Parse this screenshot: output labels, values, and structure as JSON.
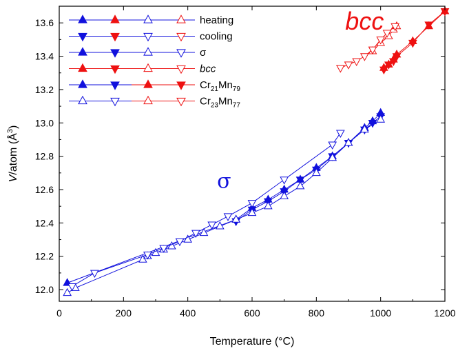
{
  "chart_data": {
    "type": "line",
    "xlabel": "Temperature (°C)",
    "ylabel_parts": [
      "V",
      "/atom (Å",
      "3",
      ")"
    ],
    "xlim": [
      0,
      1200
    ],
    "ylim": [
      11.93,
      13.7
    ],
    "xticks": [
      0,
      200,
      400,
      600,
      800,
      1000,
      1200
    ],
    "yticks": [
      12.0,
      12.2,
      12.4,
      12.6,
      12.8,
      13.0,
      13.2,
      13.4,
      13.6
    ],
    "colors": {
      "sigma": "#1111dd",
      "bcc": "#ee1111",
      "frame": "#000000"
    },
    "legend": [
      {
        "text": "heating",
        "line": "#1111dd",
        "markers": [
          {
            "shape": "tri-up",
            "filled": true,
            "color": "#1111dd"
          },
          {
            "shape": "tri-up",
            "filled": true,
            "color": "#ee1111"
          },
          {
            "shape": "tri-up",
            "filled": false,
            "color": "#1111dd"
          },
          {
            "shape": "tri-up",
            "filled": false,
            "color": "#ee1111"
          }
        ]
      },
      {
        "text": "cooling",
        "line": "#1111dd",
        "markers": [
          {
            "shape": "tri-down",
            "filled": true,
            "color": "#1111dd"
          },
          {
            "shape": "tri-down",
            "filled": true,
            "color": "#ee1111"
          },
          {
            "shape": "tri-down",
            "filled": false,
            "color": "#1111dd"
          },
          {
            "shape": "tri-down",
            "filled": false,
            "color": "#ee1111"
          }
        ]
      },
      {
        "text": "σ",
        "line": "#1111dd",
        "markers": [
          {
            "shape": "tri-up",
            "filled": true,
            "color": "#1111dd"
          },
          {
            "shape": "tri-down",
            "filled": true,
            "color": "#1111dd"
          },
          {
            "shape": "tri-up",
            "filled": false,
            "color": "#1111dd"
          },
          {
            "shape": "tri-down",
            "filled": false,
            "color": "#1111dd"
          }
        ]
      },
      {
        "text": "bcc",
        "italic": true,
        "line": "#ee1111",
        "markers": [
          {
            "shape": "tri-up",
            "filled": true,
            "color": "#ee1111"
          },
          {
            "shape": "tri-down",
            "filled": true,
            "color": "#ee1111"
          },
          {
            "shape": "tri-up",
            "filled": false,
            "color": "#ee1111"
          },
          {
            "shape": "tri-down",
            "filled": false,
            "color": "#ee1111"
          }
        ]
      },
      {
        "text": "Cr",
        "sub1": "21",
        "mid": "Mn",
        "sub2": "79",
        "line": "#1111dd",
        "line2": "#ee1111",
        "markers": [
          {
            "shape": "tri-up",
            "filled": true,
            "color": "#1111dd"
          },
          {
            "shape": "tri-down",
            "filled": true,
            "color": "#1111dd"
          },
          {
            "shape": "tri-up",
            "filled": true,
            "color": "#ee1111"
          },
          {
            "shape": "tri-down",
            "filled": true,
            "color": "#ee1111"
          }
        ]
      },
      {
        "text": "Cr",
        "sub1": "23",
        "mid": "Mn",
        "sub2": "77",
        "line": "#1111dd",
        "line2": "#ee1111",
        "markers": [
          {
            "shape": "tri-up",
            "filled": false,
            "color": "#1111dd"
          },
          {
            "shape": "tri-down",
            "filled": false,
            "color": "#1111dd"
          },
          {
            "shape": "tri-up",
            "filled": false,
            "color": "#ee1111"
          },
          {
            "shape": "tri-down",
            "filled": false,
            "color": "#ee1111"
          }
        ]
      }
    ],
    "annotations": [
      {
        "text": "bcc",
        "cls": "anno-bcc",
        "x": 1010,
        "y": 13.56
      },
      {
        "text": "σ",
        "cls": "anno-sigma",
        "x": 535,
        "y": 12.61
      }
    ],
    "series": [
      {
        "name": "heating",
        "phase": "sigma",
        "alloy": "Cr21Mn79",
        "marker": "tri-up",
        "filled": true,
        "color": "#1111dd",
        "x": [
          25,
          550,
          600,
          650,
          700,
          750,
          800,
          850,
          900,
          950,
          975,
          1000
        ],
        "y": [
          12.04,
          12.42,
          12.49,
          12.54,
          12.6,
          12.66,
          12.73,
          12.8,
          12.88,
          12.97,
          13.01,
          13.06
        ]
      },
      {
        "name": "cooling",
        "phase": "sigma",
        "alloy": "Cr21Mn79",
        "marker": "tri-down",
        "filled": true,
        "color": "#1111dd",
        "x": [
          1000,
          975,
          950,
          900,
          850,
          800,
          750,
          700,
          650,
          600,
          550
        ],
        "y": [
          13.04,
          13.0,
          12.96,
          12.88,
          12.8,
          12.72,
          12.66,
          12.59,
          12.53,
          12.48,
          12.41
        ]
      },
      {
        "name": "heating",
        "phase": "bcc",
        "alloy": "Cr21Mn79",
        "marker": "tri-up",
        "filled": true,
        "color": "#ee1111",
        "x": [
          1010,
          1025,
          1040,
          1050,
          1100,
          1150,
          1200
        ],
        "y": [
          13.33,
          13.35,
          13.38,
          13.41,
          13.49,
          13.58,
          13.67
        ]
      },
      {
        "name": "cooling",
        "phase": "bcc",
        "alloy": "Cr21Mn79",
        "marker": "tri-down",
        "filled": true,
        "color": "#ee1111",
        "x": [
          1200,
          1150,
          1100,
          1050,
          1040,
          1025,
          1010
        ],
        "y": [
          13.67,
          13.59,
          13.48,
          13.4,
          13.37,
          13.35,
          13.32
        ]
      },
      {
        "name": "heating",
        "phase": "sigma",
        "alloy": "Cr23Mn77",
        "marker": "tri-up",
        "filled": false,
        "color": "#1111dd",
        "x": [
          25,
          50,
          260,
          275,
          300,
          325,
          350,
          400,
          450,
          500,
          550,
          600,
          650,
          700,
          750,
          800,
          850,
          900,
          950,
          1000
        ],
        "y": [
          11.98,
          12.01,
          12.18,
          12.2,
          12.22,
          12.24,
          12.26,
          12.3,
          12.34,
          12.38,
          12.42,
          12.46,
          12.5,
          12.56,
          12.62,
          12.7,
          12.79,
          12.88,
          12.96,
          13.02
        ]
      },
      {
        "name": "cooling",
        "phase": "sigma",
        "alloy": "Cr23Mn77",
        "marker": "tri-down",
        "filled": false,
        "color": "#1111dd",
        "x": [
          875,
          850,
          700,
          600,
          525,
          475,
          425,
          375,
          325,
          275,
          110,
          40
        ],
        "y": [
          12.94,
          12.87,
          12.66,
          12.52,
          12.44,
          12.39,
          12.34,
          12.29,
          12.25,
          12.21,
          12.1,
          12.02
        ]
      },
      {
        "name": "heating",
        "phase": "bcc",
        "alloy": "Cr23Mn77",
        "marker": "tri-up",
        "filled": false,
        "color": "#ee1111",
        "x": [
          975,
          1000,
          1025,
          1040,
          1050
        ],
        "y": [
          13.43,
          13.48,
          13.52,
          13.56,
          13.58
        ]
      },
      {
        "name": "cooling",
        "phase": "bcc",
        "alloy": "Cr23Mn77",
        "marker": "tri-down",
        "filled": false,
        "color": "#ee1111",
        "x": [
          1045,
          1020,
          1000,
          975,
          950,
          925,
          900,
          875
        ],
        "y": [
          13.58,
          13.54,
          13.5,
          13.44,
          13.4,
          13.37,
          13.35,
          13.33
        ]
      }
    ]
  }
}
